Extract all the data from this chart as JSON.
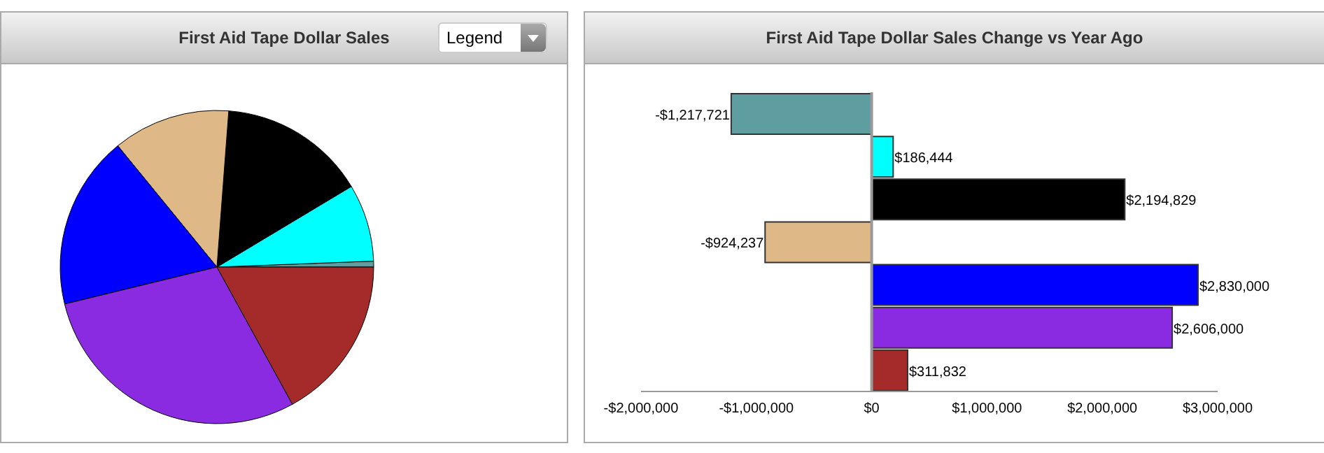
{
  "chart_data": [
    {
      "type": "pie",
      "title": "First Aid Tape Dollar Sales",
      "annotations": [
        "Legend"
      ],
      "categories": [
        null,
        null,
        null,
        null,
        null,
        null,
        null
      ],
      "values": [
        0.6,
        8.0,
        15.2,
        12.1,
        17.9,
        29.2,
        17.0
      ],
      "colors": [
        "#5f9ea0",
        "#00ffff",
        "#000000",
        "#deb887",
        "#0000ff",
        "#8a2be2",
        "#a52a2a"
      ]
    },
    {
      "type": "bar",
      "orientation": "horizontal",
      "title": "First Aid Tape Dollar Sales Change vs Year Ago",
      "categories": [
        null,
        null,
        null,
        null,
        null,
        null,
        null
      ],
      "values": [
        -1217721,
        186444,
        2194829,
        -924237,
        2830000,
        2606000,
        311832
      ],
      "colors": [
        "#5f9ea0",
        "#00ffff",
        "#000000",
        "#deb887",
        "#0000ff",
        "#8a2be2",
        "#a52a2a"
      ],
      "value_labels": [
        "-$1,217,721",
        "$186,444",
        "$2,194,829",
        "-$924,237",
        "$2,830,000",
        "$2,606,000",
        "$311,832"
      ],
      "xlim": [
        -2000000,
        3000000
      ],
      "xticks": [
        {
          "value": -2000000,
          "label": "-$2,000,000"
        },
        {
          "value": -1000000,
          "label": "-$1,000,000"
        },
        {
          "value": 0,
          "label": "$0"
        },
        {
          "value": 1000000,
          "label": "$1,000,000"
        },
        {
          "value": 2000000,
          "label": "$2,000,000"
        },
        {
          "value": 3000000,
          "label": "$3,000,000"
        }
      ],
      "tick_labels": "x",
      "ref_lines": [
        {
          "axis": "x",
          "value": 0,
          "color": "#999999"
        }
      ]
    }
  ]
}
